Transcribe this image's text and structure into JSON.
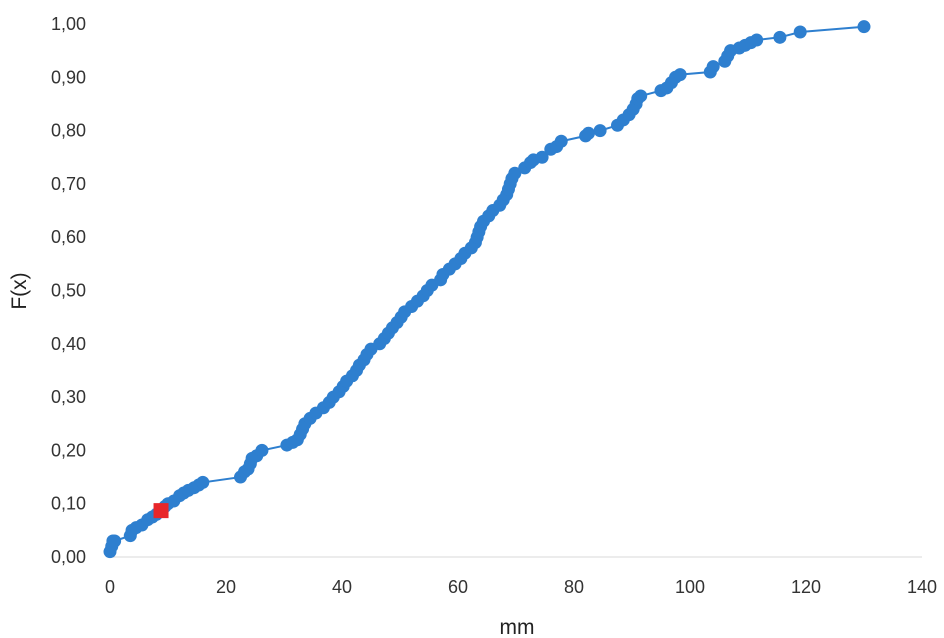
{
  "chart_data": {
    "type": "scatter",
    "title": "",
    "xlabel": "mm",
    "ylabel": "F(x)",
    "xlim": [
      0,
      140
    ],
    "ylim": [
      0,
      1
    ],
    "x_ticks": [
      0,
      20,
      40,
      60,
      80,
      100,
      120,
      140
    ],
    "y_ticks": [
      0,
      0.1,
      0.2,
      0.3,
      0.4,
      0.5,
      0.6,
      0.7,
      0.8,
      0.9,
      1.0
    ],
    "x_tick_labels": [
      "0",
      "20",
      "40",
      "60",
      "80",
      "100",
      "120",
      "140"
    ],
    "y_tick_labels": [
      "0,00",
      "0,10",
      "0,20",
      "0,30",
      "0,40",
      "0,50",
      "0,60",
      "0,70",
      "0,80",
      "0,90",
      "1,00"
    ],
    "grid": false,
    "legend": "none",
    "series": [
      {
        "marker": "circle",
        "line": true,
        "color": "#2e7fcf",
        "points": [
          [
            0.0,
            0.01
          ],
          [
            0.3,
            0.02
          ],
          [
            0.5,
            0.03
          ],
          [
            0.8,
            0.03
          ],
          [
            3.5,
            0.04
          ],
          [
            3.8,
            0.05
          ],
          [
            4.5,
            0.055
          ],
          [
            5.5,
            0.06
          ],
          [
            6.5,
            0.07
          ],
          [
            7.3,
            0.075
          ],
          [
            8.0,
            0.08
          ],
          [
            9.5,
            0.095
          ],
          [
            10.0,
            0.1
          ],
          [
            11.0,
            0.105
          ],
          [
            12.0,
            0.115
          ],
          [
            12.7,
            0.12
          ],
          [
            13.5,
            0.125
          ],
          [
            14.5,
            0.13
          ],
          [
            15.3,
            0.135
          ],
          [
            16.0,
            0.14
          ],
          [
            22.5,
            0.15
          ],
          [
            23.2,
            0.16
          ],
          [
            23.8,
            0.165
          ],
          [
            24.2,
            0.175
          ],
          [
            24.5,
            0.185
          ],
          [
            25.3,
            0.19
          ],
          [
            26.2,
            0.2
          ],
          [
            30.5,
            0.21
          ],
          [
            31.5,
            0.215
          ],
          [
            32.3,
            0.22
          ],
          [
            32.8,
            0.23
          ],
          [
            33.2,
            0.24
          ],
          [
            33.6,
            0.25
          ],
          [
            34.5,
            0.26
          ],
          [
            35.5,
            0.27
          ],
          [
            36.8,
            0.28
          ],
          [
            37.8,
            0.29
          ],
          [
            38.5,
            0.3
          ],
          [
            39.5,
            0.31
          ],
          [
            40.2,
            0.32
          ],
          [
            40.8,
            0.33
          ],
          [
            41.8,
            0.34
          ],
          [
            42.5,
            0.35
          ],
          [
            43.0,
            0.36
          ],
          [
            43.8,
            0.37
          ],
          [
            44.3,
            0.38
          ],
          [
            45.0,
            0.39
          ],
          [
            46.5,
            0.4
          ],
          [
            47.3,
            0.41
          ],
          [
            48.0,
            0.42
          ],
          [
            48.7,
            0.43
          ],
          [
            49.5,
            0.44
          ],
          [
            50.2,
            0.45
          ],
          [
            50.8,
            0.46
          ],
          [
            52.0,
            0.47
          ],
          [
            53.0,
            0.48
          ],
          [
            54.0,
            0.49
          ],
          [
            54.7,
            0.5
          ],
          [
            55.5,
            0.51
          ],
          [
            57.0,
            0.52
          ],
          [
            57.4,
            0.53
          ],
          [
            58.5,
            0.54
          ],
          [
            59.5,
            0.55
          ],
          [
            60.5,
            0.56
          ],
          [
            61.2,
            0.57
          ],
          [
            62.3,
            0.58
          ],
          [
            63.0,
            0.59
          ],
          [
            63.3,
            0.6
          ],
          [
            63.6,
            0.61
          ],
          [
            63.9,
            0.62
          ],
          [
            64.4,
            0.63
          ],
          [
            65.3,
            0.64
          ],
          [
            66.0,
            0.65
          ],
          [
            67.2,
            0.66
          ],
          [
            67.8,
            0.67
          ],
          [
            68.4,
            0.68
          ],
          [
            68.7,
            0.69
          ],
          [
            69.0,
            0.7
          ],
          [
            69.3,
            0.71
          ],
          [
            69.8,
            0.72
          ],
          [
            71.5,
            0.73
          ],
          [
            72.5,
            0.74
          ],
          [
            73.0,
            0.745
          ],
          [
            74.5,
            0.75
          ],
          [
            76.0,
            0.765
          ],
          [
            77.0,
            0.77
          ],
          [
            77.8,
            0.78
          ],
          [
            82.0,
            0.79
          ],
          [
            82.5,
            0.795
          ],
          [
            84.5,
            0.8
          ],
          [
            87.5,
            0.81
          ],
          [
            88.5,
            0.82
          ],
          [
            89.5,
            0.83
          ],
          [
            90.2,
            0.84
          ],
          [
            90.7,
            0.85
          ],
          [
            91.0,
            0.86
          ],
          [
            91.5,
            0.865
          ],
          [
            95.0,
            0.875
          ],
          [
            96.0,
            0.88
          ],
          [
            96.8,
            0.89
          ],
          [
            97.5,
            0.9
          ],
          [
            98.3,
            0.905
          ],
          [
            103.5,
            0.91
          ],
          [
            104.0,
            0.92
          ],
          [
            106.0,
            0.93
          ],
          [
            106.5,
            0.94
          ],
          [
            107.0,
            0.95
          ],
          [
            108.5,
            0.955
          ],
          [
            109.5,
            0.96
          ],
          [
            110.5,
            0.965
          ],
          [
            111.5,
            0.97
          ],
          [
            115.5,
            0.975
          ],
          [
            119.0,
            0.985
          ],
          [
            130.0,
            0.995
          ]
        ]
      },
      {
        "marker": "square",
        "line": false,
        "color": "#e8262a",
        "points": [
          [
            8.8,
            0.087
          ]
        ]
      }
    ]
  }
}
